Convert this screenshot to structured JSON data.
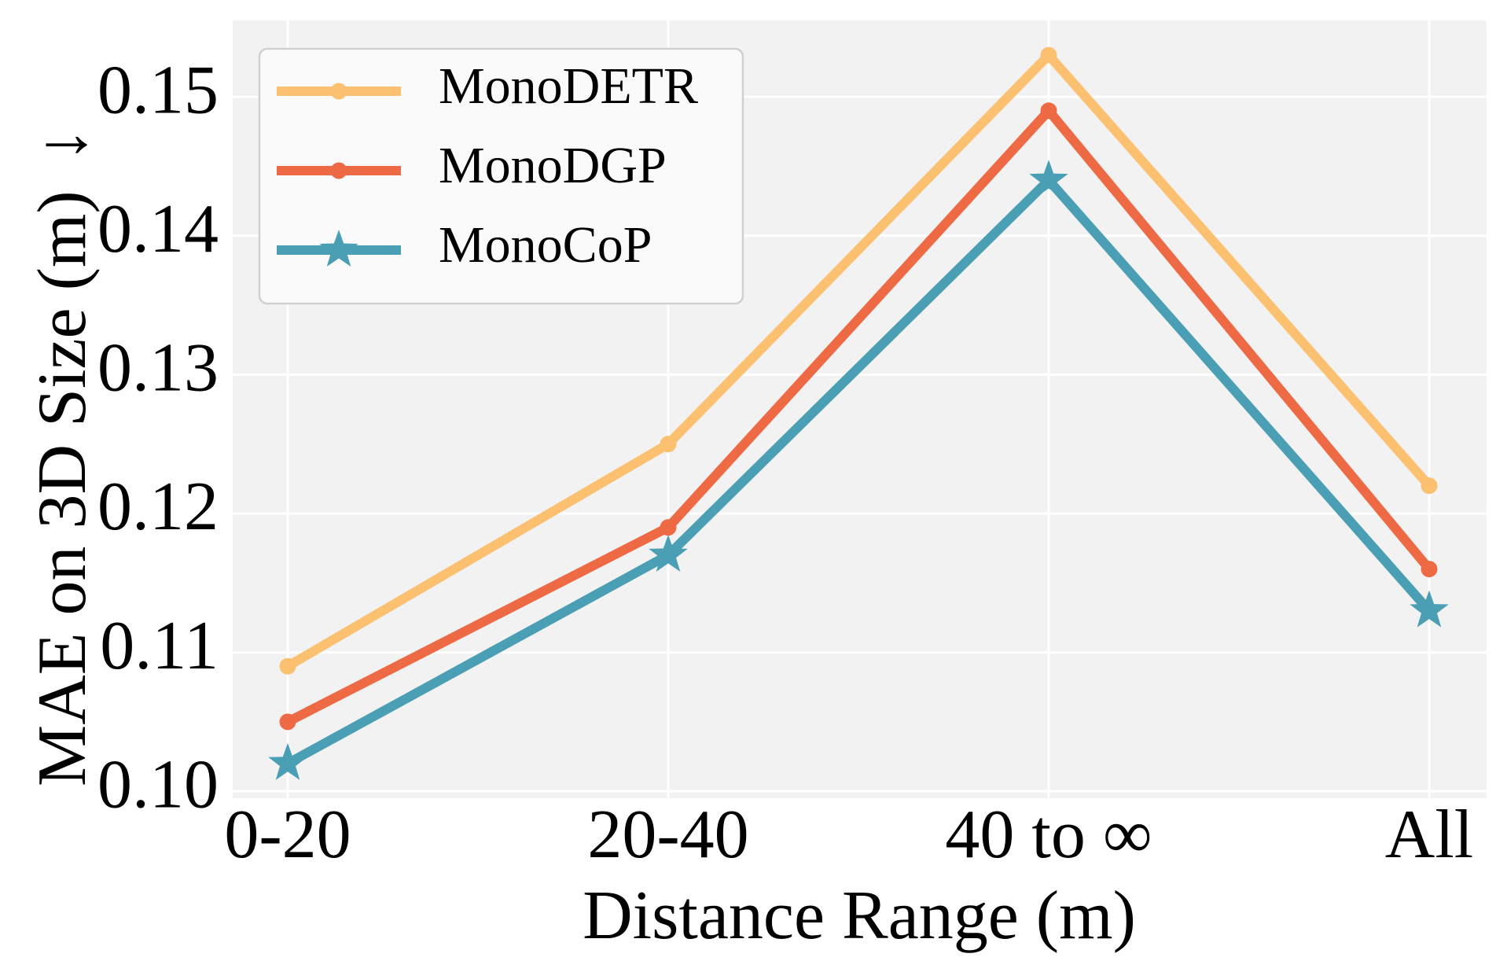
{
  "chart_data": {
    "type": "line",
    "title": "",
    "xlabel": "Distance Range (m)",
    "ylabel": "MAE on 3D Size (m)",
    "ylabel_arrow": "↓",
    "categories": [
      "0-20",
      "20-40",
      "40 to ∞",
      "All"
    ],
    "ylim": [
      0.0995,
      0.1555
    ],
    "yticks": [
      0.1,
      0.11,
      0.12,
      0.13,
      0.14,
      0.15
    ],
    "ytick_labels": [
      "0.10",
      "0.11",
      "0.12",
      "0.13",
      "0.14",
      "0.15"
    ],
    "grid": true,
    "legend_position": "top-left",
    "series": [
      {
        "name": "MonoDETR",
        "values": [
          0.109,
          0.125,
          0.153,
          0.122
        ],
        "color": "#FBC070",
        "marker": "circle"
      },
      {
        "name": "MonoDGP",
        "values": [
          0.105,
          0.119,
          0.149,
          0.116
        ],
        "color": "#EE6A45",
        "marker": "circle"
      },
      {
        "name": "MonoCoP",
        "values": [
          0.102,
          0.117,
          0.144,
          0.113
        ],
        "color": "#4A9FB4",
        "marker": "star"
      }
    ]
  },
  "colors": {
    "plot_background": "#F2F2F2",
    "grid": "#FFFFFF"
  }
}
